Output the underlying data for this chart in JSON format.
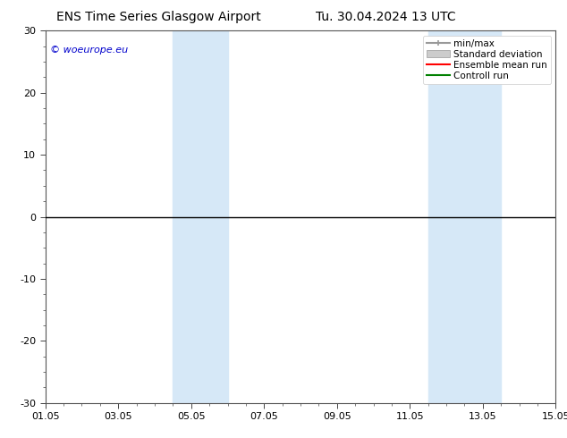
{
  "title_left": "ENS Time Series Glasgow Airport",
  "title_right": "Tu. 30.04.2024 13 UTC",
  "ylim": [
    -30,
    30
  ],
  "yticks": [
    -30,
    -20,
    -10,
    0,
    10,
    20,
    30
  ],
  "xtick_labels": [
    "01.05",
    "03.05",
    "05.05",
    "07.05",
    "09.05",
    "11.05",
    "13.05",
    "15.05"
  ],
  "xtick_positions": [
    0,
    2,
    4,
    6,
    8,
    10,
    12,
    14
  ],
  "shaded_bands": [
    {
      "x_start": 3.5,
      "x_end": 5.0
    },
    {
      "x_start": 10.5,
      "x_end": 12.5
    }
  ],
  "shade_color": "#d6e8f7",
  "zero_line_color": "#000000",
  "background_color": "#ffffff",
  "watermark_text": "© woeurope.eu",
  "watermark_color": "#0000cc",
  "legend_items": [
    {
      "label": "min/max",
      "color": "#999999",
      "style": "line_with_caps"
    },
    {
      "label": "Standard deviation",
      "color": "#cccccc",
      "style": "rect"
    },
    {
      "label": "Ensemble mean run",
      "color": "#ff0000",
      "style": "line"
    },
    {
      "label": "Controll run",
      "color": "#008000",
      "style": "line"
    }
  ],
  "title_fontsize": 10,
  "tick_fontsize": 8,
  "legend_fontsize": 7.5,
  "spine_color": "#555555"
}
